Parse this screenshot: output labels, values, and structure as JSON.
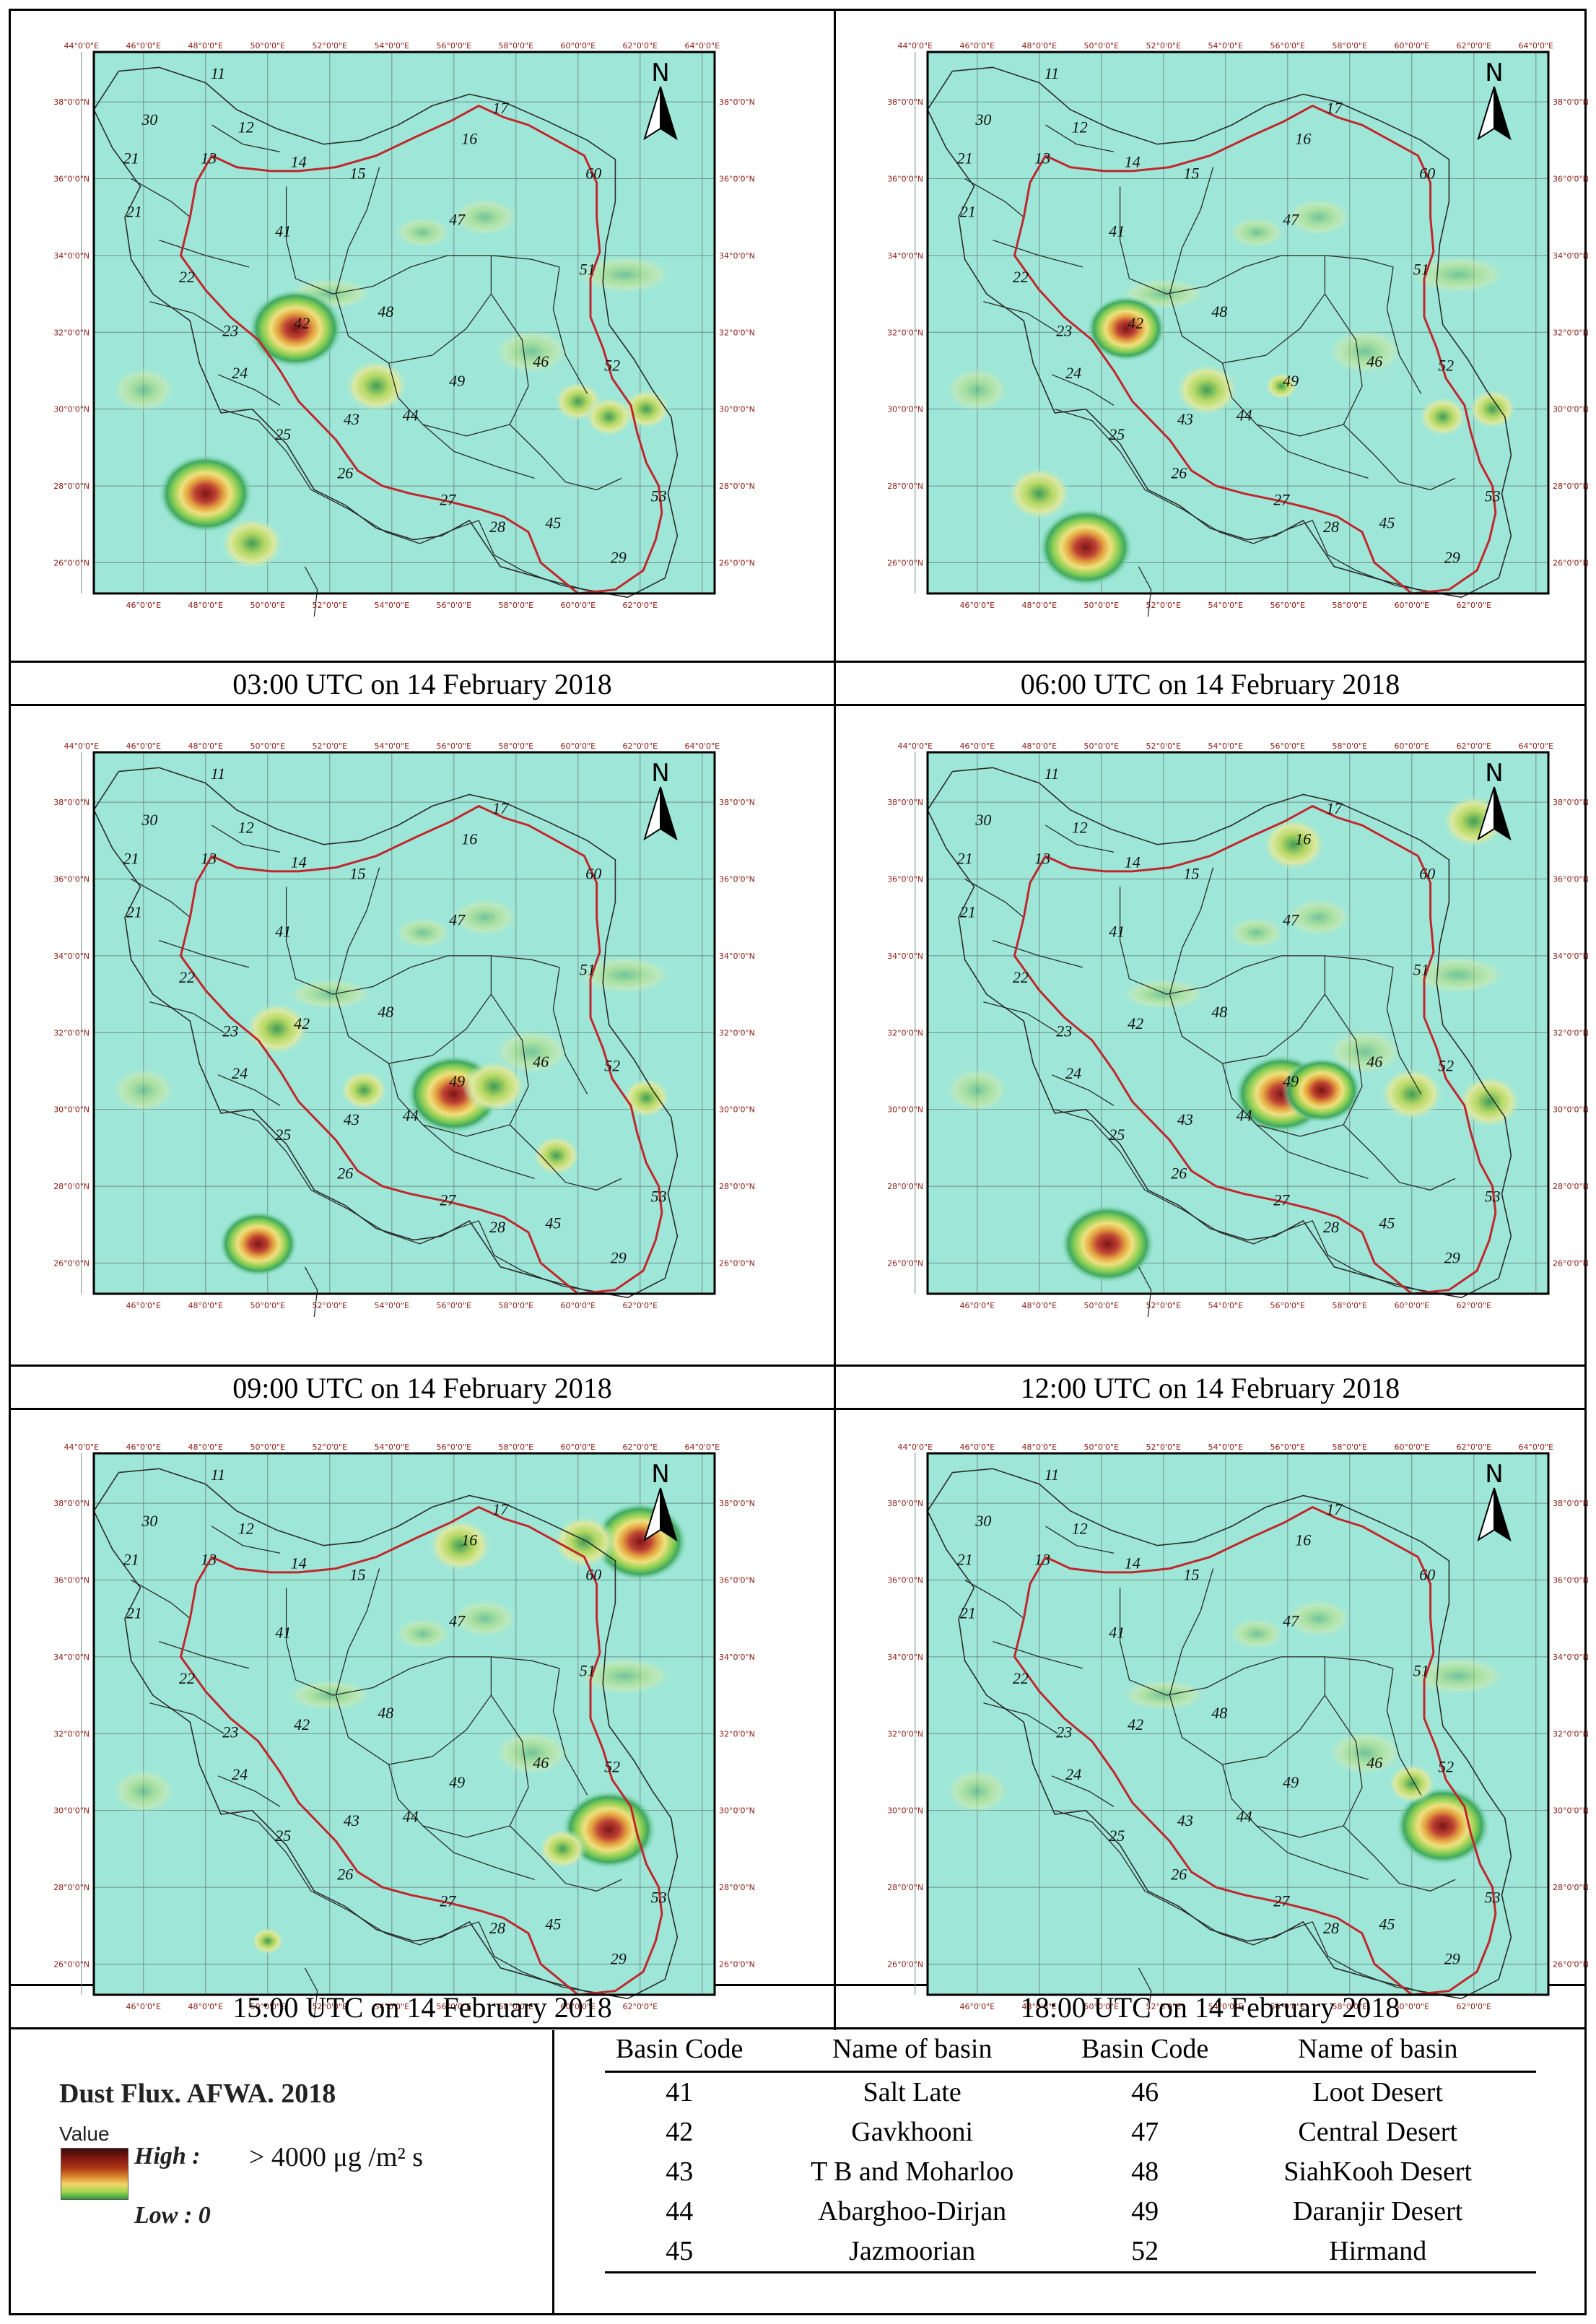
{
  "captions": [
    "03:00 UTC on 14 February 2018",
    "06:00 UTC on 14 February 2018",
    "09:00 UTC on 14 February 2018",
    "12:00 UTC on 14 February 2018",
    "15:00 UTC on 14 February 2018",
    "18:00 UTC on 14 February 2018"
  ],
  "map": {
    "north_label": "N",
    "lon_labels": [
      "44°0'0\"E",
      "46°0'0\"E",
      "48°0'0\"E",
      "50°0'0\"E",
      "52°0'0\"E",
      "54°0'0\"E",
      "56°0'0\"E",
      "58°0'0\"E",
      "60°0'0\"E",
      "62°0'0\"E",
      "64°0'0\"E"
    ],
    "lat_labels": [
      "38°0'0\"N",
      "36°0'0\"N",
      "34°0'0\"N",
      "32°0'0\"N",
      "30°0'0\"N",
      "28°0'0\"N",
      "26°0'0\"N"
    ],
    "basin_labels": [
      "11",
      "30",
      "12",
      "21",
      "13",
      "14",
      "15",
      "16",
      "17",
      "60",
      "47",
      "41",
      "21",
      "51",
      "22",
      "48",
      "42",
      "23",
      "24",
      "49",
      "46",
      "52",
      "43",
      "44",
      "25",
      "26",
      "27",
      "45",
      "53",
      "28",
      "29"
    ],
    "background_color": "#9ee7d8",
    "border_color": "#c0272d"
  },
  "hotspots": [
    [
      {
        "lon": 50.9,
        "lat": 32.1,
        "level": 5
      },
      {
        "lon": 53.5,
        "lat": 30.6,
        "level": 3
      },
      {
        "lon": 48.0,
        "lat": 27.8,
        "level": 5
      },
      {
        "lon": 49.5,
        "lat": 26.5,
        "level": 3
      },
      {
        "lon": 60.0,
        "lat": 30.2,
        "level": 2
      },
      {
        "lon": 62.2,
        "lat": 30.0,
        "level": 2
      },
      {
        "lon": 61.0,
        "lat": 29.8,
        "level": 2
      }
    ],
    [
      {
        "lon": 50.8,
        "lat": 32.1,
        "level": 4
      },
      {
        "lon": 53.4,
        "lat": 30.5,
        "level": 3
      },
      {
        "lon": 49.5,
        "lat": 26.4,
        "level": 5
      },
      {
        "lon": 48.0,
        "lat": 27.8,
        "level": 3
      },
      {
        "lon": 61.0,
        "lat": 29.8,
        "level": 2
      },
      {
        "lon": 62.6,
        "lat": 30.0,
        "level": 2
      },
      {
        "lon": 55.8,
        "lat": 30.6,
        "level": 1
      }
    ],
    [
      {
        "lon": 50.3,
        "lat": 32.1,
        "level": 3
      },
      {
        "lon": 56.0,
        "lat": 30.4,
        "level": 5
      },
      {
        "lon": 57.3,
        "lat": 30.6,
        "level": 3
      },
      {
        "lon": 53.1,
        "lat": 30.5,
        "level": 2
      },
      {
        "lon": 49.7,
        "lat": 26.5,
        "level": 4
      },
      {
        "lon": 59.3,
        "lat": 28.8,
        "level": 2
      },
      {
        "lon": 62.2,
        "lat": 30.3,
        "level": 2
      }
    ],
    [
      {
        "lon": 55.8,
        "lat": 30.4,
        "level": 5
      },
      {
        "lon": 57.1,
        "lat": 30.5,
        "level": 4
      },
      {
        "lon": 50.2,
        "lat": 26.5,
        "level": 5
      },
      {
        "lon": 56.2,
        "lat": 36.9,
        "level": 3
      },
      {
        "lon": 62.0,
        "lat": 37.5,
        "level": 3
      },
      {
        "lon": 60.0,
        "lat": 30.4,
        "level": 3
      },
      {
        "lon": 62.5,
        "lat": 30.2,
        "level": 3
      }
    ],
    [
      {
        "lon": 61.0,
        "lat": 29.5,
        "level": 5
      },
      {
        "lon": 62.0,
        "lat": 37.0,
        "level": 5
      },
      {
        "lon": 60.2,
        "lat": 37.0,
        "level": 3
      },
      {
        "lon": 56.2,
        "lat": 36.9,
        "level": 3
      },
      {
        "lon": 59.5,
        "lat": 29.0,
        "level": 2
      },
      {
        "lon": 50.0,
        "lat": 26.6,
        "level": 1
      }
    ],
    [
      {
        "lon": 61.0,
        "lat": 29.6,
        "level": 5
      },
      {
        "lon": 60.0,
        "lat": 30.7,
        "level": 2
      }
    ]
  ],
  "legend": {
    "title": "Dust Flux. AFWA. 2018",
    "value_label": "Value",
    "high_label": "High :",
    "high_value": "> 4000 μg /m² s",
    "low_label": "Low : 0"
  },
  "table": {
    "headers": [
      "Basin Code",
      "Name of basin",
      "Basin Code",
      "Name of basin"
    ],
    "rows": [
      [
        "41",
        "Salt Late",
        "46",
        "Loot Desert"
      ],
      [
        "42",
        "Gavkhooni",
        "47",
        "Central Desert"
      ],
      [
        "43",
        "T B and Moharloo",
        "48",
        "SiahKooh Desert"
      ],
      [
        "44",
        "Abarghoo-Dirjan",
        "49",
        "Daranjir Desert"
      ],
      [
        "45",
        "Jazmoorian",
        "52",
        "Hirmand"
      ]
    ]
  }
}
